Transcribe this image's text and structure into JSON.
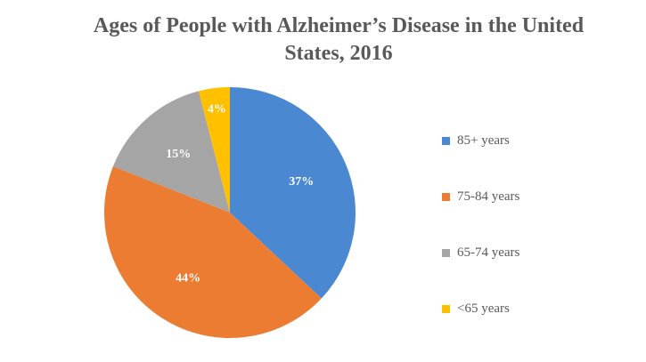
{
  "chart_data": {
    "type": "pie",
    "title": "Ages of People with Alzheimer’s Disease in the United States, 2016",
    "categories": [
      "85+ years",
      "75-84 years",
      "65-74 years",
      "<65 years"
    ],
    "values": [
      37,
      44,
      15,
      4
    ],
    "value_labels": [
      "37%",
      "44%",
      "15%",
      "4%"
    ],
    "colors": [
      "#4a89d2",
      "#ec7c32",
      "#a5a5a5",
      "#ffc000"
    ],
    "start_angle": "12 o'clock",
    "direction": "clockwise",
    "legend": "right"
  }
}
